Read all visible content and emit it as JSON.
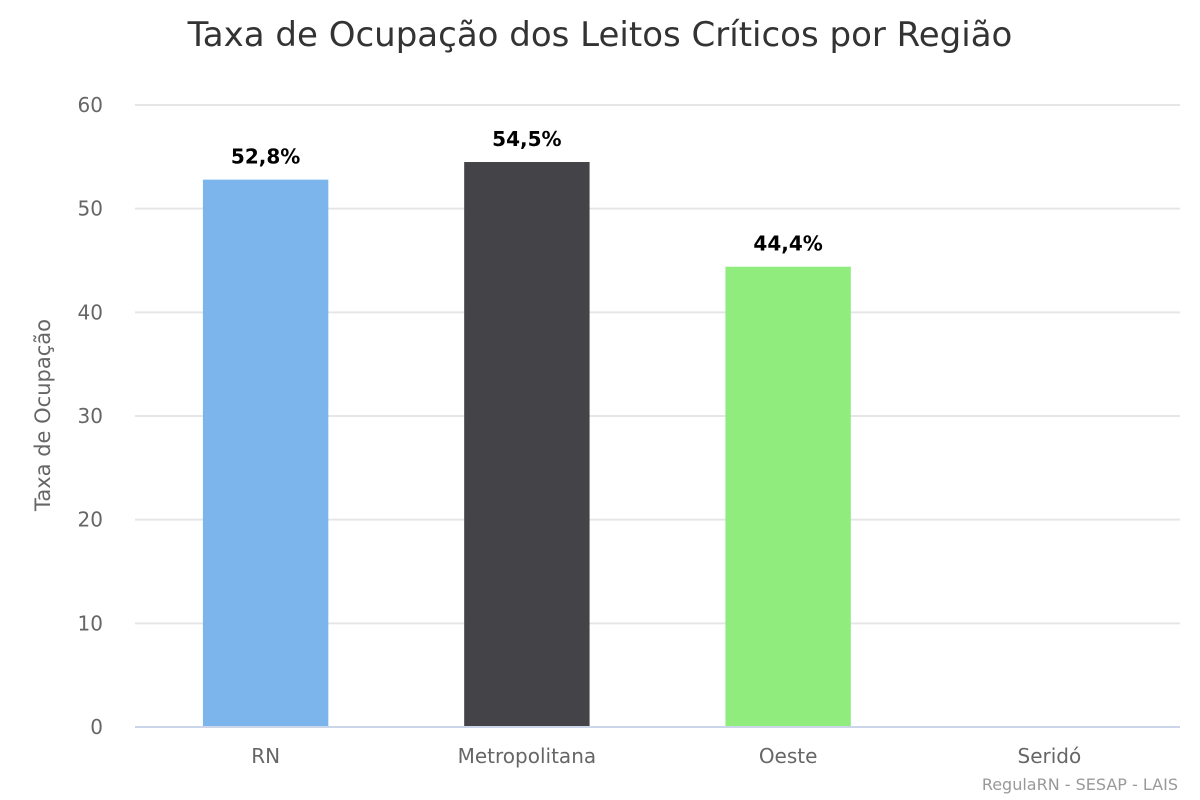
{
  "chart_data": {
    "type": "bar",
    "title": "Taxa de Ocupação dos Leitos Críticos por Região",
    "ylabel": "Taxa de Ocupação",
    "xlabel": "",
    "ylim": [
      0,
      60
    ],
    "y_ticks": [
      0,
      10,
      20,
      30,
      40,
      50,
      60
    ],
    "y_tick_labels": [
      "0",
      "10",
      "20",
      "30",
      "40",
      "50",
      "60"
    ],
    "grid": true,
    "legend": "none",
    "categories": [
      "RN",
      "Metropolitana",
      "Oeste",
      "Seridó"
    ],
    "values": [
      52.8,
      54.5,
      44.4,
      null
    ],
    "data_labels": [
      "52,8%",
      "54,5%",
      "44,4%",
      ""
    ],
    "colors": [
      "#7cb5ec",
      "#434348",
      "#90ed7d",
      "#f7a35c"
    ]
  },
  "credits": "RegulaRN - SESAP - LAIS"
}
